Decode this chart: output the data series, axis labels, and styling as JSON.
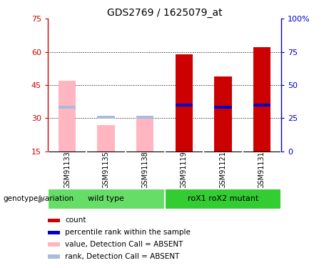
{
  "title": "GDS2769 / 1625079_at",
  "samples": [
    "GSM91133",
    "GSM91135",
    "GSM91138",
    "GSM91119",
    "GSM91121",
    "GSM91131"
  ],
  "groups": [
    {
      "label": "wild type",
      "color": "#66DD66",
      "indices": [
        0,
        1,
        2
      ]
    },
    {
      "label": "roX1 roX2 mutant",
      "color": "#33CC33",
      "indices": [
        3,
        4,
        5
      ]
    }
  ],
  "bar_absent_value": [
    47,
    27,
    30,
    null,
    null,
    null
  ],
  "bar_absent_rank": [
    35,
    30.5,
    30.5,
    null,
    null,
    null
  ],
  "bar_present_value": [
    null,
    null,
    null,
    59,
    49,
    62
  ],
  "bar_present_rank": [
    null,
    null,
    null,
    36,
    35,
    36
  ],
  "ylim_left": [
    15,
    75
  ],
  "ylim_right": [
    0,
    100
  ],
  "yticks_left": [
    15,
    30,
    45,
    60,
    75
  ],
  "yticks_right": [
    0,
    25,
    50,
    75,
    100
  ],
  "left_axis_color": "#CC0000",
  "right_axis_color": "#0000CC",
  "absent_bar_color": "#FFB6C1",
  "absent_rank_color": "#AABBDD",
  "present_bar_color": "#CC0000",
  "present_rank_color": "#0000CC",
  "grid_dotted_values": [
    30,
    45,
    60
  ],
  "legend_items": [
    {
      "label": "count",
      "color": "#CC0000"
    },
    {
      "label": "percentile rank within the sample",
      "color": "#0000CC"
    },
    {
      "label": "value, Detection Call = ABSENT",
      "color": "#FFB6C1"
    },
    {
      "label": "rank, Detection Call = ABSENT",
      "color": "#AABBDD"
    }
  ],
  "genotype_label": "genotype/variation",
  "sample_box_color": "#CCCCCC",
  "bar_width": 0.45
}
